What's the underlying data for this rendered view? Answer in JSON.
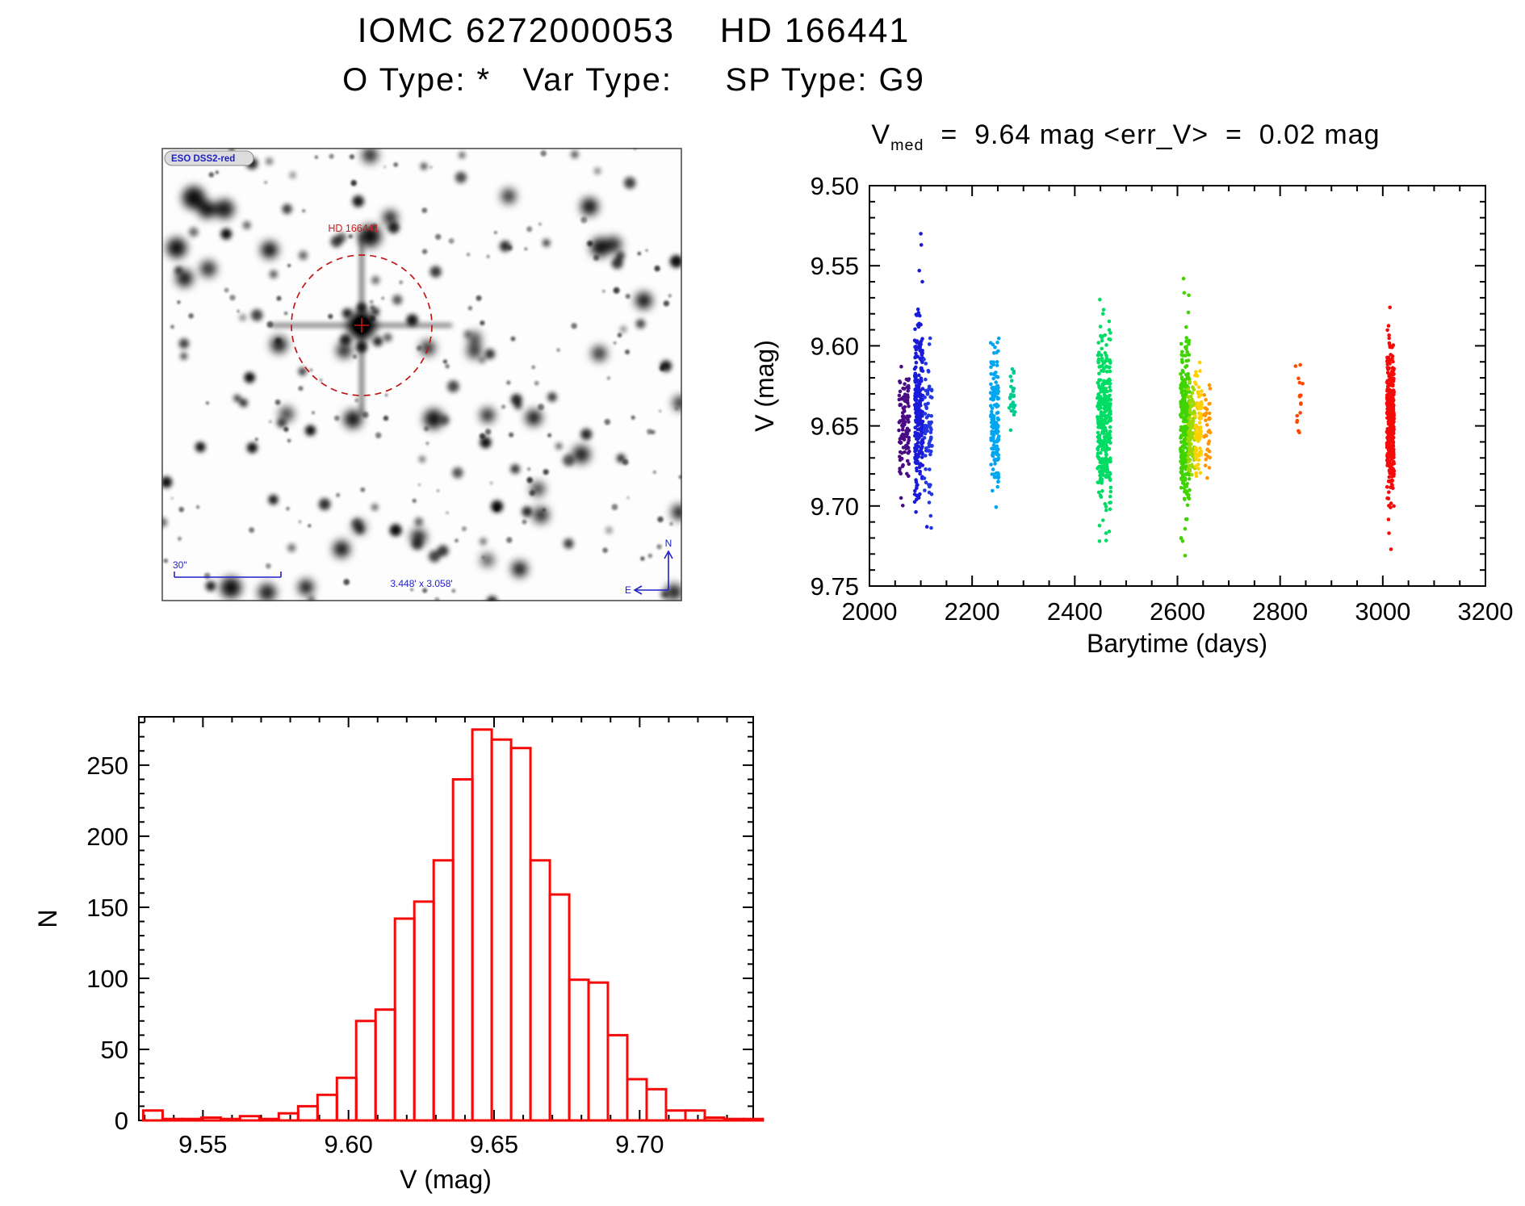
{
  "header": {
    "title": "IOMC 6272000053    HD 166441",
    "subtitle": "O Type: *   Var Type:     SP Type: G9"
  },
  "finder": {
    "survey_label": "ESO DSS2-red",
    "target_label": "HD 166441",
    "scale_bar_label": "30\"",
    "fov_label": "3.448' x 3.058'",
    "compass_north": "N",
    "compass_east": "E",
    "annotation_color": "#2020c8",
    "marker_color": "#c11616"
  },
  "chart_data": [
    {
      "type": "scatter",
      "title_parts": {
        "v": "V",
        "sub": "med",
        "rest": "  =  9.64 mag <err_V>  =  0.02 mag"
      },
      "v_med_mag": 9.64,
      "err_v_mag": 0.02,
      "xlabel": "Barytime (days)",
      "ylabel": "V (mag)",
      "xlim": [
        2000,
        3200
      ],
      "ylim": [
        9.5,
        9.75
      ],
      "y_inverted_mag_axis": true,
      "xticks": [
        2000,
        2200,
        2400,
        2600,
        2800,
        3000,
        3200
      ],
      "yticks": [
        9.5,
        9.55,
        9.6,
        9.65,
        9.7,
        9.75
      ],
      "x_minor_step": 50,
      "y_minor_step": 0.01,
      "grid": false,
      "legend": "none",
      "clusters": [
        {
          "name": "epoch-1-purple",
          "color": "#4b0b85",
          "t": [
            2057,
            2078
          ],
          "n": 110,
          "v_mean": 9.648,
          "v_sigma": 0.018,
          "v_range": [
            9.612,
            9.701
          ],
          "outliers": [
            [
              2062,
              9.613
            ]
          ]
        },
        {
          "name": "epoch-2-blue",
          "color": "#1a1ad9",
          "t": [
            2088,
            2104
          ],
          "n": 250,
          "v_mean": 9.642,
          "v_sigma": 0.028,
          "v_range": [
            9.528,
            9.712
          ],
          "outliers": [
            [
              2100,
              9.53
            ],
            [
              2101,
              9.537
            ],
            [
              2097,
              9.553
            ],
            [
              2103,
              9.56
            ],
            [
              2112,
              9.713
            ]
          ]
        },
        {
          "name": "epoch-2b-blue",
          "color": "#2336e3",
          "t": [
            2106,
            2122
          ],
          "n": 70,
          "v_mean": 9.648,
          "v_sigma": 0.024,
          "v_range": [
            9.585,
            9.714
          ],
          "outliers": []
        },
        {
          "name": "epoch-3-cyan",
          "color": "#00a6f0",
          "t": [
            2236,
            2252
          ],
          "n": 150,
          "v_mean": 9.645,
          "v_sigma": 0.022,
          "v_range": [
            9.594,
            9.706
          ],
          "outliers": []
        },
        {
          "name": "epoch-3b-teal",
          "color": "#00cc92",
          "t": [
            2272,
            2284
          ],
          "n": 28,
          "v_mean": 9.632,
          "v_sigma": 0.01,
          "v_range": [
            9.613,
            9.653
          ],
          "outliers": []
        },
        {
          "name": "epoch-4-green",
          "color": "#00dc64",
          "t": [
            2444,
            2470
          ],
          "n": 330,
          "v_mean": 9.648,
          "v_sigma": 0.026,
          "v_range": [
            9.558,
            9.722
          ],
          "outliers": [
            [
              2450,
              9.588
            ],
            [
              2455,
              9.58
            ],
            [
              2461,
              9.717
            ],
            [
              2448,
              9.722
            ]
          ]
        },
        {
          "name": "epoch-5-lime",
          "color": "#3fd400",
          "t": [
            2606,
            2624
          ],
          "n": 280,
          "v_mean": 9.648,
          "v_sigma": 0.026,
          "v_range": [
            9.548,
            9.731
          ],
          "outliers": [
            [
              2612,
              9.558
            ],
            [
              2615,
              9.731
            ],
            [
              2610,
              9.722
            ]
          ]
        },
        {
          "name": "epoch-5b-yellowgreen",
          "color": "#9cd900",
          "t": [
            2620,
            2634
          ],
          "n": 90,
          "v_mean": 9.652,
          "v_sigma": 0.014,
          "v_range": [
            9.622,
            9.695
          ],
          "outliers": []
        },
        {
          "name": "epoch-5c-gold",
          "color": "#ffd000",
          "t": [
            2634,
            2648
          ],
          "n": 80,
          "v_mean": 9.65,
          "v_sigma": 0.018,
          "v_range": [
            9.607,
            9.705
          ],
          "outliers": []
        },
        {
          "name": "epoch-5d-orange",
          "color": "#ff9500",
          "t": [
            2652,
            2664
          ],
          "n": 36,
          "v_mean": 9.652,
          "v_sigma": 0.014,
          "v_range": [
            9.624,
            9.688
          ],
          "outliers": []
        },
        {
          "name": "epoch-6-orangered",
          "color": "#ff4800",
          "t": [
            2830,
            2844
          ],
          "n": 16,
          "v_mean": 9.63,
          "v_sigma": 0.018,
          "v_range": [
            9.601,
            9.665
          ],
          "outliers": []
        },
        {
          "name": "epoch-7-red",
          "color": "#f50a0a",
          "t": [
            3008,
            3022
          ],
          "n": 380,
          "v_mean": 9.647,
          "v_sigma": 0.022,
          "v_range": [
            9.575,
            9.727
          ],
          "outliers": [
            [
              3014,
              9.576
            ],
            [
              3016,
              9.727
            ],
            [
              3012,
              9.717
            ]
          ]
        }
      ]
    },
    {
      "type": "bar",
      "subtype": "histogram",
      "xlabel": "V (mag)",
      "ylabel": "N",
      "xlim": [
        9.528,
        9.739
      ],
      "ylim": [
        0,
        284
      ],
      "xticks": [
        9.55,
        9.6,
        9.65,
        9.7
      ],
      "yticks": [
        0,
        50,
        100,
        150,
        200,
        250
      ],
      "x_minor_step": 0.01,
      "y_minor_step": 10,
      "bin_start": 9.5295,
      "bin_width": 0.00665,
      "counts": [
        7,
        1,
        1,
        2,
        1,
        3,
        1,
        5,
        10,
        18,
        30,
        70,
        78,
        142,
        154,
        183,
        240,
        275,
        268,
        262,
        183,
        159,
        99,
        97,
        60,
        29,
        22,
        7,
        7,
        2,
        1,
        1
      ],
      "color": "#f50a0a",
      "grid": false
    }
  ]
}
